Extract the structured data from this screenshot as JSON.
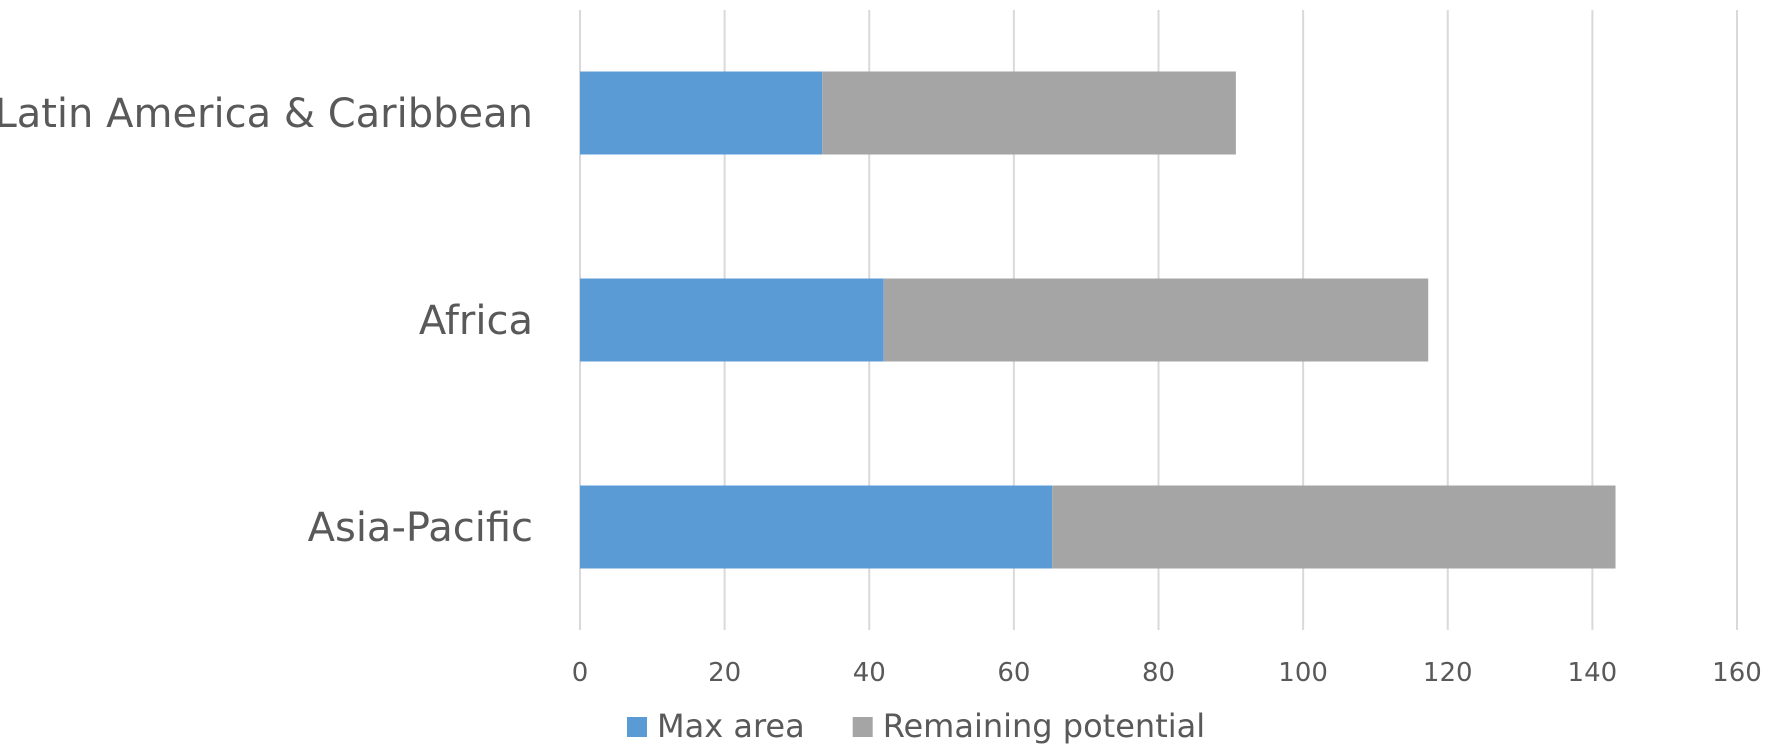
{
  "chart_data": {
    "type": "bar",
    "orientation": "horizontal",
    "stacked": true,
    "categories": [
      "Latin America & Caribbean",
      "Africa",
      "Asia-Pacific"
    ],
    "series": [
      {
        "name": "Max area",
        "color": "#5b9bd5",
        "values": [
          33.5,
          42,
          65.3
        ]
      },
      {
        "name": "Remaining potential",
        "color": "#a5a5a5",
        "values": [
          57.2,
          75.3,
          77.9
        ]
      }
    ],
    "xlim": [
      0,
      160
    ],
    "x_ticks": [
      0,
      20,
      40,
      60,
      80,
      100,
      120,
      140,
      160
    ],
    "grid": true,
    "legend_position": "bottom"
  }
}
